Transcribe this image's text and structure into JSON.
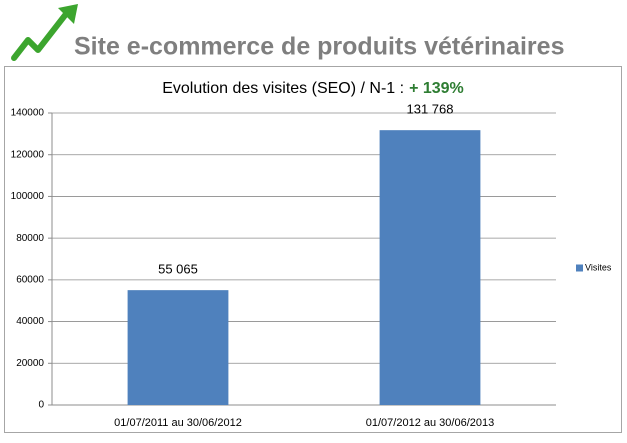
{
  "header": {
    "title": "Site e-commerce de produits vétérinaires"
  },
  "chart_data": {
    "type": "bar",
    "title": "Evolution des visites (SEO) / N-1 :",
    "annotation": "+ 139%",
    "categories": [
      "01/07/2011 au 30/06/2012",
      "01/07/2012 au 30/06/2013"
    ],
    "series": [
      {
        "name": "Visites",
        "color": "#4f81bd",
        "values": [
          55065,
          131768
        ],
        "value_labels": [
          "55 065",
          "131 768"
        ]
      }
    ],
    "ylim": [
      0,
      140000
    ],
    "yticks": [
      0,
      20000,
      40000,
      60000,
      80000,
      100000,
      120000,
      140000
    ],
    "grid": true,
    "legend": "right"
  }
}
